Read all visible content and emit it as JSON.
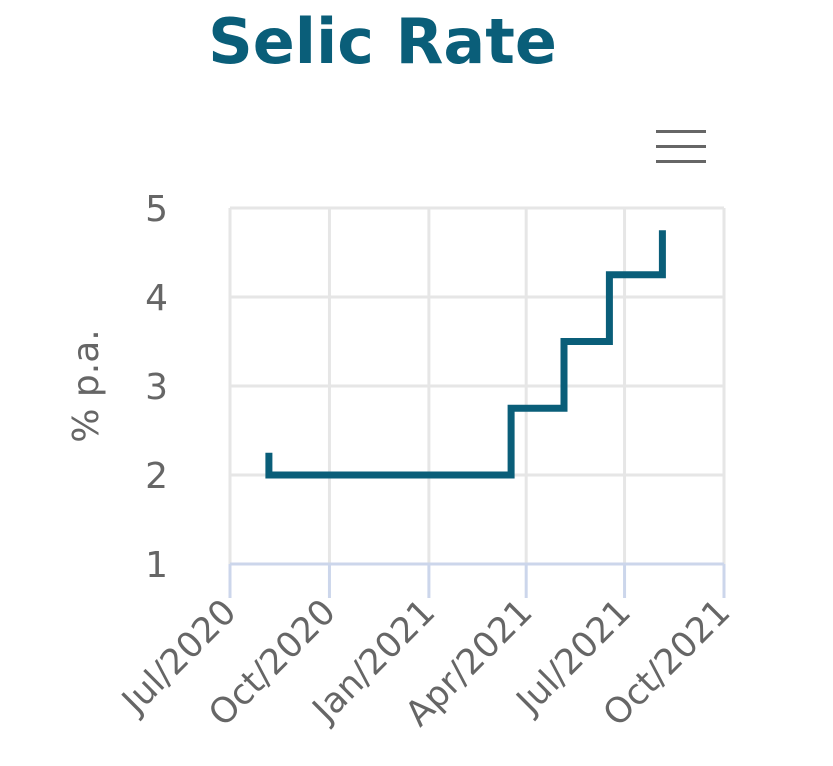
{
  "chart_data": {
    "type": "line",
    "title": "Selic Rate",
    "xlabel": "",
    "ylabel": "% p.a.",
    "x_ticks": [
      "Jul/2020",
      "Oct/2020",
      "Jan/2021",
      "Apr/2021",
      "Jul/2021",
      "Oct/2021"
    ],
    "x_range": [
      "2020-07-01",
      "2021-10-01"
    ],
    "y_ticks": [
      1,
      2,
      3,
      4,
      5
    ],
    "ylim": [
      1,
      5
    ],
    "grid": true,
    "line_color": "#0a5e79",
    "series": [
      {
        "step": "after",
        "points": [
          {
            "x": "2020-08-06",
            "y": 2.25
          },
          {
            "x": "2020-08-06",
            "y": 2.0
          },
          {
            "x": "2021-03-18",
            "y": 2.0
          },
          {
            "x": "2021-03-18",
            "y": 2.75
          },
          {
            "x": "2021-05-06",
            "y": 2.75
          },
          {
            "x": "2021-05-06",
            "y": 3.5
          },
          {
            "x": "2021-06-17",
            "y": 3.5
          },
          {
            "x": "2021-06-17",
            "y": 4.25
          },
          {
            "x": "2021-08-05",
            "y": 4.25
          },
          {
            "x": "2021-08-05",
            "y": 4.75
          }
        ]
      }
    ]
  },
  "menu": {
    "icon": "hamburger-menu-icon"
  }
}
